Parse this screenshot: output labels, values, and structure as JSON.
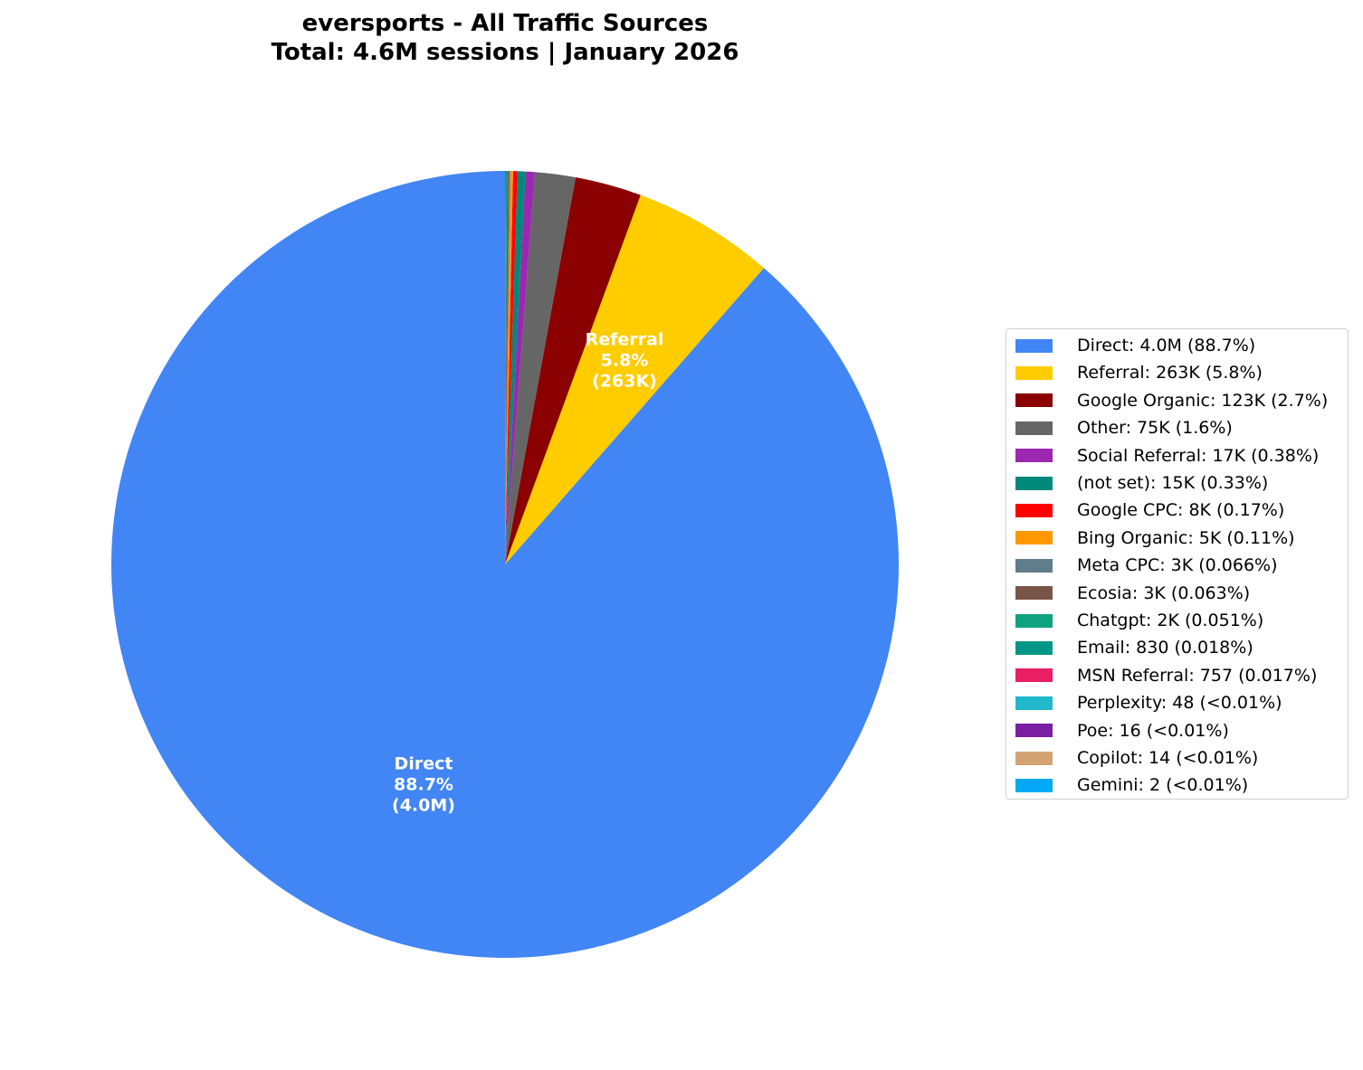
{
  "title": {
    "line1": "eversports - All Traffic Sources",
    "line2": "Total: 4.6M sessions | January 2026"
  },
  "chart_data": {
    "type": "pie",
    "title": "eversports - All Traffic Sources\nTotal: 4.6M sessions | January 2026",
    "start_angle": "90deg (top), clockwise",
    "legend_position": "right",
    "slices": [
      {
        "name": "Direct",
        "value": 4000000,
        "display_value": "4.0M",
        "percent": 88.7,
        "percent_label": "88.7%",
        "color": "#4285F4",
        "legend": "Direct: 4.0M (88.7%)"
      },
      {
        "name": "Referral",
        "value": 263000,
        "display_value": "263K",
        "percent": 5.8,
        "percent_label": "5.8%",
        "color": "#FFCC00",
        "legend": "Referral: 263K (5.8%)"
      },
      {
        "name": "Google Organic",
        "value": 123000,
        "display_value": "123K",
        "percent": 2.7,
        "percent_label": "2.7%",
        "color": "#8B0000",
        "legend": "Google Organic: 123K (2.7%)"
      },
      {
        "name": "Other",
        "value": 75000,
        "display_value": "75K",
        "percent": 1.6,
        "percent_label": "1.6%",
        "color": "#666666",
        "legend": "Other: 75K (1.6%)"
      },
      {
        "name": "Social Referral",
        "value": 17000,
        "display_value": "17K",
        "percent": 0.38,
        "percent_label": "0.38%",
        "color": "#9C27B0",
        "legend": "Social Referral: 17K (0.38%)"
      },
      {
        "name": "(not set)",
        "value": 15000,
        "display_value": "15K",
        "percent": 0.33,
        "percent_label": "0.33%",
        "color": "#00897B",
        "legend": "(not set): 15K (0.33%)"
      },
      {
        "name": "Google CPC",
        "value": 8000,
        "display_value": "8K",
        "percent": 0.17,
        "percent_label": "0.17%",
        "color": "#FF0000",
        "legend": "Google CPC: 8K (0.17%)"
      },
      {
        "name": "Bing Organic",
        "value": 5000,
        "display_value": "5K",
        "percent": 0.11,
        "percent_label": "0.11%",
        "color": "#FF9800",
        "legend": "Bing Organic: 5K (0.11%)"
      },
      {
        "name": "Meta CPC",
        "value": 3000,
        "display_value": "3K",
        "percent": 0.066,
        "percent_label": "0.066%",
        "color": "#607D8B",
        "legend": "Meta CPC: 3K (0.066%)"
      },
      {
        "name": "Ecosia",
        "value": 3000,
        "display_value": "3K",
        "percent": 0.063,
        "percent_label": "0.063%",
        "color": "#795548",
        "legend": "Ecosia: 3K (0.063%)"
      },
      {
        "name": "Chatgpt",
        "value": 2000,
        "display_value": "2K",
        "percent": 0.051,
        "percent_label": "0.051%",
        "color": "#10A37F",
        "legend": "Chatgpt: 2K (0.051%)"
      },
      {
        "name": "Email",
        "value": 830,
        "display_value": "830",
        "percent": 0.018,
        "percent_label": "0.018%",
        "color": "#009688",
        "legend": "Email: 830 (0.018%)"
      },
      {
        "name": "MSN Referral",
        "value": 757,
        "display_value": "757",
        "percent": 0.017,
        "percent_label": "0.017%",
        "color": "#E91E63",
        "legend": "MSN Referral: 757 (0.017%)"
      },
      {
        "name": "Perplexity",
        "value": 48,
        "display_value": "48",
        "percent": 0.001,
        "percent_label": "<0.01%",
        "color": "#20B8CD",
        "legend": "Perplexity: 48 (<0.01%)"
      },
      {
        "name": "Poe",
        "value": 16,
        "display_value": "16",
        "percent": 0.0003,
        "percent_label": "<0.01%",
        "color": "#7B1FA2",
        "legend": "Poe: 16 (<0.01%)"
      },
      {
        "name": "Copilot",
        "value": 14,
        "display_value": "14",
        "percent": 0.0003,
        "percent_label": "<0.01%",
        "color": "#D4A373",
        "legend": "Copilot: 14 (<0.01%)"
      },
      {
        "name": "Gemini",
        "value": 2,
        "display_value": "2",
        "percent": 4e-05,
        "percent_label": "<0.01%",
        "color": "#03A9F4",
        "legend": "Gemini: 2 (<0.01%)"
      }
    ],
    "slice_labels": [
      {
        "line1": "Direct",
        "line2": "88.7%",
        "line3": "(4.0M)"
      },
      {
        "line1": "Referral",
        "line2": "5.8%",
        "line3": "(263K)"
      }
    ]
  }
}
